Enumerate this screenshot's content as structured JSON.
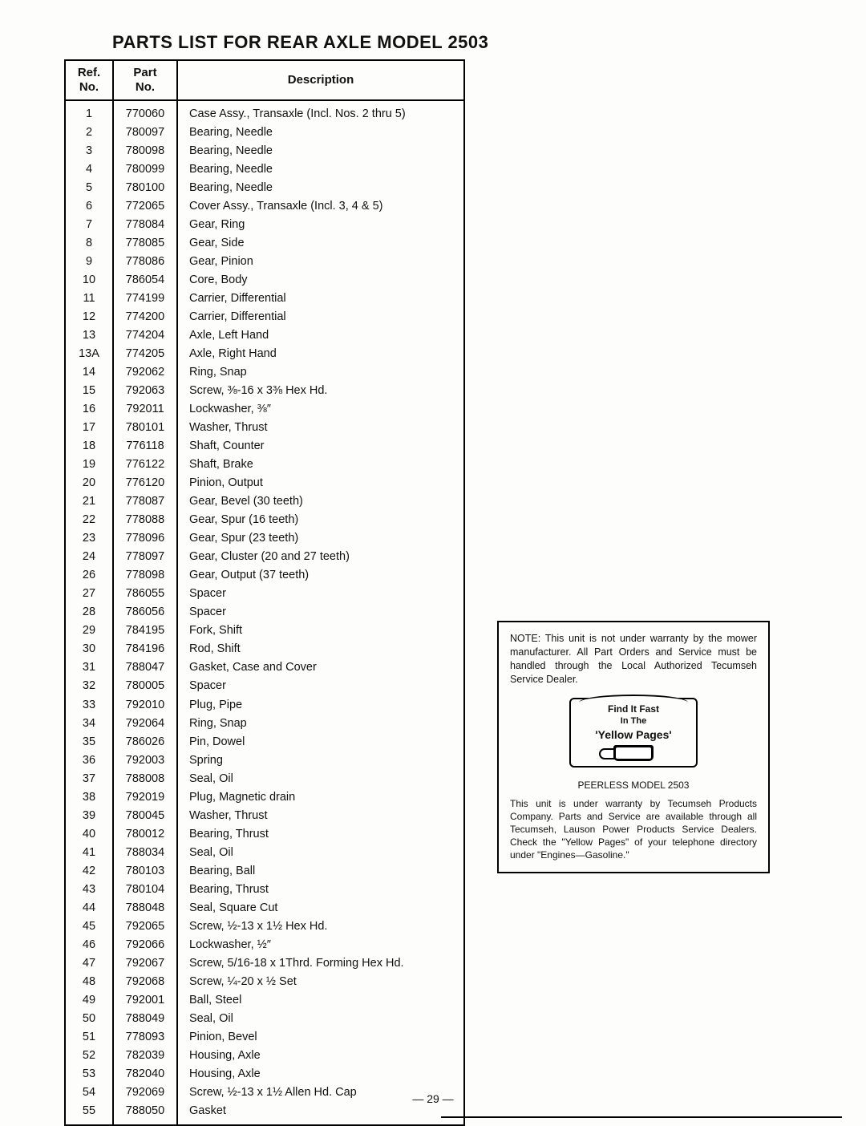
{
  "title": "PARTS LIST FOR REAR AXLE MODEL 2503",
  "headers": {
    "ref": "Ref.\nNo.",
    "part": "Part\nNo.",
    "desc": "Description"
  },
  "rows": [
    {
      "ref": "1",
      "part": "770060",
      "desc": "Case Assy., Transaxle (Incl. Nos. 2 thru 5)"
    },
    {
      "ref": "2",
      "part": "780097",
      "desc": "Bearing, Needle"
    },
    {
      "ref": "3",
      "part": "780098",
      "desc": "Bearing, Needle"
    },
    {
      "ref": "4",
      "part": "780099",
      "desc": "Bearing, Needle"
    },
    {
      "ref": "5",
      "part": "780100",
      "desc": "Bearing, Needle"
    },
    {
      "ref": "6",
      "part": "772065",
      "desc": "Cover Assy., Transaxle (Incl. 3, 4 & 5)"
    },
    {
      "ref": "7",
      "part": "778084",
      "desc": "Gear, Ring"
    },
    {
      "ref": "8",
      "part": "778085",
      "desc": "Gear, Side"
    },
    {
      "ref": "9",
      "part": "778086",
      "desc": "Gear, Pinion"
    },
    {
      "ref": "10",
      "part": "786054",
      "desc": "Core, Body"
    },
    {
      "ref": "11",
      "part": "774199",
      "desc": "Carrier, Differential"
    },
    {
      "ref": "12",
      "part": "774200",
      "desc": "Carrier, Differential"
    },
    {
      "ref": "13",
      "part": "774204",
      "desc": "Axle, Left Hand"
    },
    {
      "ref": "13A",
      "part": "774205",
      "desc": "Axle, Right Hand"
    },
    {
      "ref": "14",
      "part": "792062",
      "desc": "Ring, Snap"
    },
    {
      "ref": "15",
      "part": "792063",
      "desc": "Screw, ⅜-16 x 3⅜ Hex Hd."
    },
    {
      "ref": "16",
      "part": "792011",
      "desc": "Lockwasher, ⅜″"
    },
    {
      "ref": "17",
      "part": "780101",
      "desc": "Washer, Thrust"
    },
    {
      "ref": "18",
      "part": "776118",
      "desc": "Shaft, Counter"
    },
    {
      "ref": "19",
      "part": "776122",
      "desc": "Shaft, Brake"
    },
    {
      "ref": "20",
      "part": "776120",
      "desc": "Pinion, Output"
    },
    {
      "ref": "21",
      "part": "778087",
      "desc": "Gear, Bevel (30 teeth)"
    },
    {
      "ref": "22",
      "part": "778088",
      "desc": "Gear, Spur (16 teeth)"
    },
    {
      "ref": "23",
      "part": "778096",
      "desc": "Gear, Spur (23 teeth)"
    },
    {
      "ref": "24",
      "part": "778097",
      "desc": "Gear, Cluster (20 and 27 teeth)"
    },
    {
      "ref": "26",
      "part": "778098",
      "desc": "Gear, Output (37 teeth)"
    },
    {
      "ref": "27",
      "part": "786055",
      "desc": "Spacer"
    },
    {
      "ref": "28",
      "part": "786056",
      "desc": "Spacer"
    },
    {
      "ref": "29",
      "part": "784195",
      "desc": "Fork, Shift"
    },
    {
      "ref": "30",
      "part": "784196",
      "desc": "Rod, Shift"
    },
    {
      "ref": "31",
      "part": "788047",
      "desc": "Gasket, Case and Cover"
    },
    {
      "ref": "32",
      "part": "780005",
      "desc": "Spacer"
    },
    {
      "ref": "33",
      "part": "792010",
      "desc": "Plug, Pipe"
    },
    {
      "ref": "34",
      "part": "792064",
      "desc": "Ring, Snap"
    },
    {
      "ref": "35",
      "part": "786026",
      "desc": "Pin, Dowel"
    },
    {
      "ref": "36",
      "part": "792003",
      "desc": "Spring"
    },
    {
      "ref": "37",
      "part": "788008",
      "desc": "Seal, Oil"
    },
    {
      "ref": "38",
      "part": "792019",
      "desc": "Plug, Magnetic drain"
    },
    {
      "ref": "39",
      "part": "780045",
      "desc": "Washer, Thrust"
    },
    {
      "ref": "40",
      "part": "780012",
      "desc": "Bearing, Thrust"
    },
    {
      "ref": "41",
      "part": "788034",
      "desc": "Seal, Oil"
    },
    {
      "ref": "42",
      "part": "780103",
      "desc": "Bearing, Ball"
    },
    {
      "ref": "43",
      "part": "780104",
      "desc": "Bearing, Thrust"
    },
    {
      "ref": "44",
      "part": "788048",
      "desc": "Seal, Square Cut"
    },
    {
      "ref": "45",
      "part": "792065",
      "desc": "Screw, ½-13 x 1½ Hex Hd."
    },
    {
      "ref": "46",
      "part": "792066",
      "desc": "Lockwasher, ½″"
    },
    {
      "ref": "47",
      "part": "792067",
      "desc": "Screw, 5/16-18 x 1Thrd. Forming Hex Hd."
    },
    {
      "ref": "48",
      "part": "792068",
      "desc": "Screw, ¼-20 x ½ Set"
    },
    {
      "ref": "49",
      "part": "792001",
      "desc": "Ball, Steel"
    },
    {
      "ref": "50",
      "part": "788049",
      "desc": "Seal, Oil"
    },
    {
      "ref": "51",
      "part": "778093",
      "desc": "Pinion, Bevel"
    },
    {
      "ref": "52",
      "part": "782039",
      "desc": "Housing, Axle"
    },
    {
      "ref": "53",
      "part": "782040",
      "desc": "Housing, Axle"
    },
    {
      "ref": "54",
      "part": "792069",
      "desc": "Screw, ½-13 x 1½ Allen Hd. Cap"
    },
    {
      "ref": "55",
      "part": "788050",
      "desc": "Gasket"
    }
  ],
  "note": {
    "top": "NOTE: This unit is not under warranty by the mower manufacturer. All Part Orders and Service must be handled through the Local Authorized Tecumseh Service Dealer.",
    "yp1": "Find It Fast",
    "yp2": "In The",
    "yp3": "'Yellow Pages'",
    "model": "PEERLESS MODEL 2503",
    "bottom": "This unit is under warranty by Tecumseh Products Company. Parts and Service are available through all Tecumseh, Lauson Power Products Service Dealers. Check the \"Yellow Pages\" of your telephone directory under \"Engines—Gasoline.\""
  },
  "page": "— 29 —"
}
